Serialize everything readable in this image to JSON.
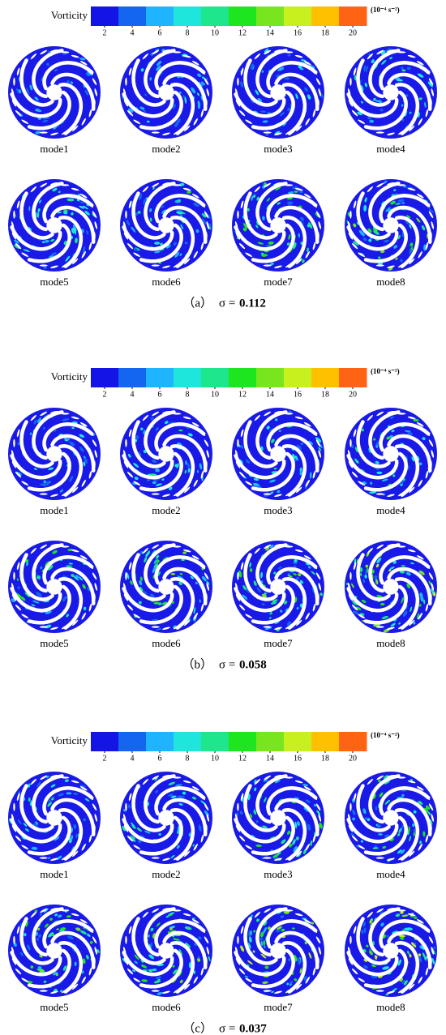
{
  "figure": {
    "panels": [
      {
        "colorbar": {
          "label": "Vorticity",
          "clim": [
            1,
            21
          ],
          "ticks": [
            2,
            4,
            6,
            8,
            10,
            12,
            14,
            16,
            18,
            20
          ],
          "unit": "(10⁻⁴ s⁻²)",
          "colors": [
            "#1414e6",
            "#1466f0",
            "#1eb4ff",
            "#1ee6dc",
            "#1ee68c",
            "#1ee61e",
            "#78e61e",
            "#c8f01e",
            "#ffc000",
            "#ff6414",
            "#ff1414"
          ]
        },
        "modes": [
          "mode1",
          "mode2",
          "mode3",
          "mode4",
          "mode5",
          "mode6",
          "mode7",
          "mode8"
        ],
        "label": "（a）",
        "sigma_text": "σ =",
        "sigma": 0.112
      },
      {
        "colorbar": {
          "label": "Vorticity",
          "clim": [
            1,
            21
          ],
          "ticks": [
            2,
            4,
            6,
            8,
            10,
            12,
            14,
            16,
            18,
            20
          ],
          "unit": "(10⁻⁴ s⁻²)",
          "colors": [
            "#1414e6",
            "#1466f0",
            "#1eb4ff",
            "#1ee6dc",
            "#1ee68c",
            "#1ee61e",
            "#78e61e",
            "#c8f01e",
            "#ffc000",
            "#ff6414",
            "#ff1414"
          ]
        },
        "modes": [
          "mode1",
          "mode2",
          "mode3",
          "mode4",
          "mode5",
          "mode6",
          "mode7",
          "mode8"
        ],
        "label": "（b）",
        "sigma_text": "σ =",
        "sigma": 0.058
      },
      {
        "colorbar": {
          "label": "Vorticity",
          "clim": [
            1,
            21
          ],
          "ticks": [
            2,
            4,
            6,
            8,
            10,
            12,
            14,
            16,
            18,
            20
          ],
          "unit": "(10⁻⁴ s⁻²)",
          "colors": [
            "#1414e6",
            "#1466f0",
            "#1eb4ff",
            "#1ee6dc",
            "#1ee68c",
            "#1ee61e",
            "#78e61e",
            "#c8f01e",
            "#ffc000",
            "#ff6414",
            "#ff1414"
          ]
        },
        "modes": [
          "mode1",
          "mode2",
          "mode3",
          "mode4",
          "mode5",
          "mode6",
          "mode7",
          "mode8"
        ],
        "label": "（c）",
        "sigma_text": "σ =",
        "sigma": 0.037
      }
    ]
  }
}
